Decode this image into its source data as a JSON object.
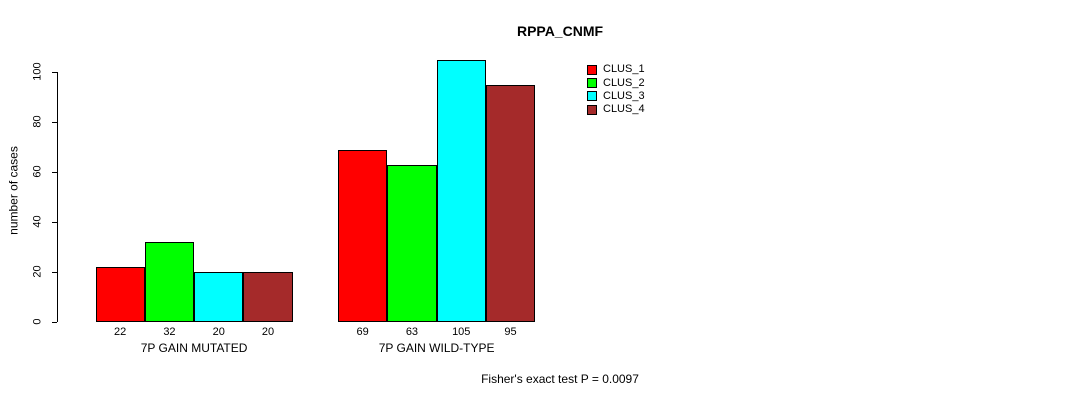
{
  "chart_data": {
    "type": "bar",
    "title": "RPPA_CNMF",
    "ylabel": "number of cases",
    "xlabel": "",
    "ylim": [
      0,
      100
    ],
    "yticks": [
      0,
      20,
      40,
      60,
      80,
      100
    ],
    "categories": [
      "7P GAIN MUTATED",
      "7P GAIN WILD-TYPE"
    ],
    "series": [
      {
        "name": "CLUS_1",
        "color": "#ff0000",
        "values": [
          22,
          69
        ]
      },
      {
        "name": "CLUS_2",
        "color": "#00ff00",
        "values": [
          32,
          63
        ]
      },
      {
        "name": "CLUS_3",
        "color": "#00ffff",
        "values": [
          20,
          105
        ]
      },
      {
        "name": "CLUS_4",
        "color": "#a52a2a",
        "values": [
          20,
          95
        ]
      }
    ],
    "bar_value_labels_shown": true,
    "grid": false,
    "legend_position": "top-right",
    "annotation": "Fisher's exact test P = 0.0097"
  }
}
